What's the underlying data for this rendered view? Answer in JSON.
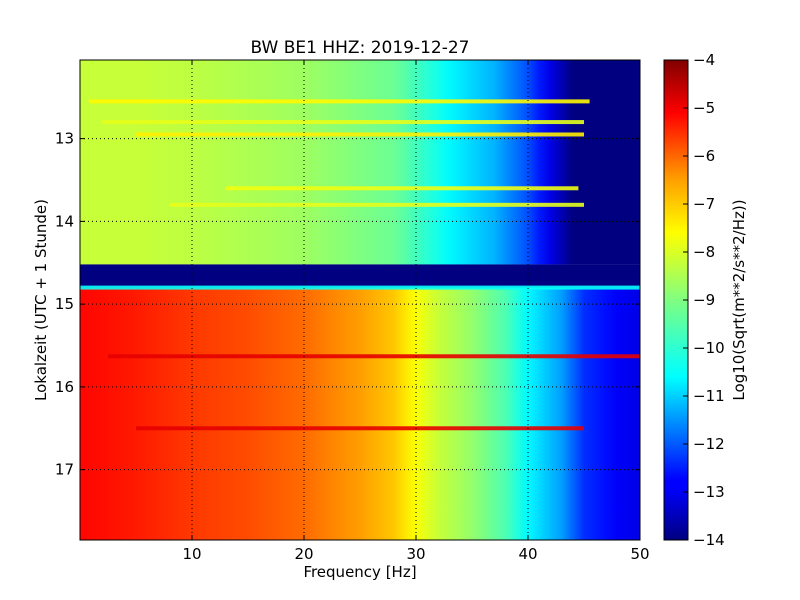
{
  "chart_data": {
    "type": "heatmap",
    "title": "BW BE1 HHZ: 2019-12-27",
    "xlabel": "Frequency [Hz]",
    "ylabel": "Lokalzeit (UTC + 1 Stunde)",
    "xlim": [
      0,
      50
    ],
    "ylim": [
      17.85,
      12.05
    ],
    "x_ticks": [
      10,
      20,
      30,
      40,
      50
    ],
    "y_ticks": [
      13,
      14,
      15,
      16,
      17
    ],
    "grid": true,
    "colormap": "jet",
    "colorbar": {
      "label": "Log10(Sqrt(m**2/s**2/Hz))",
      "range": [
        -14,
        -4
      ],
      "ticks": [
        -4,
        -5,
        -6,
        -7,
        -8,
        -9,
        -10,
        -11,
        -12,
        -13,
        -14
      ]
    },
    "segments": [
      {
        "time_range": [
          12.05,
          14.52
        ],
        "profile_freq": [
          0,
          5,
          10,
          20,
          28,
          30,
          33,
          37,
          40,
          42,
          44,
          50
        ],
        "profile_level": [
          -8.3,
          -8.3,
          -8.4,
          -8.7,
          -9.2,
          -9.6,
          -10.3,
          -11.0,
          -12.0,
          -13.0,
          -14.0,
          -14.0
        ]
      },
      {
        "time_range": [
          14.52,
          14.8
        ],
        "profile_freq": [
          0,
          50
        ],
        "profile_level": [
          -14.0,
          -14.0
        ]
      },
      {
        "time_range": [
          14.8,
          17.85
        ],
        "profile_freq": [
          0,
          5,
          10,
          15,
          20,
          25,
          28,
          30,
          32,
          35,
          38,
          40,
          43,
          45,
          48,
          50
        ],
        "profile_level": [
          -5.3,
          -5.5,
          -5.8,
          -6.0,
          -6.3,
          -6.8,
          -7.2,
          -7.8,
          -8.3,
          -8.8,
          -9.5,
          -10.3,
          -11.2,
          -12.3,
          -12.8,
          -13.0
        ]
      }
    ],
    "bands": [
      {
        "time": 12.55,
        "freq_range": [
          0.8,
          45.5
        ],
        "level": -7.7
      },
      {
        "time": 12.8,
        "freq_range": [
          2,
          45
        ],
        "level": -8.0
      },
      {
        "time": 12.95,
        "freq_range": [
          5,
          45
        ],
        "level": -7.6
      },
      {
        "time": 13.6,
        "freq_range": [
          13,
          44.5
        ],
        "level": -7.9
      },
      {
        "time": 13.8,
        "freq_range": [
          8,
          45
        ],
        "level": -8.0
      },
      {
        "time": 14.8,
        "freq_range": [
          0,
          50
        ],
        "level": -10.2
      },
      {
        "time": 15.63,
        "freq_range": [
          2.5,
          50
        ],
        "level": -5.0
      },
      {
        "time": 16.5,
        "freq_range": [
          5,
          45
        ],
        "level": -5.0
      }
    ]
  }
}
